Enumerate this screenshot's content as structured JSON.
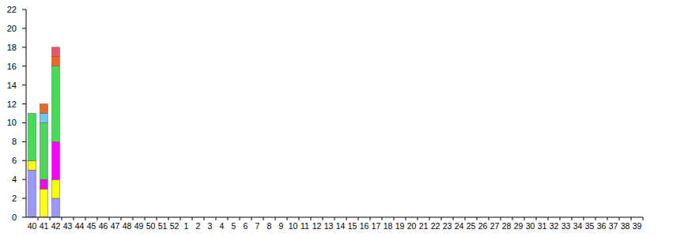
{
  "chart_data": {
    "type": "bar",
    "stacked": true,
    "grid": false,
    "categories": [
      "40",
      "41",
      "42",
      "43",
      "44",
      "45",
      "46",
      "47",
      "48",
      "49",
      "50",
      "51",
      "52",
      "1",
      "2",
      "3",
      "4",
      "5",
      "6",
      "7",
      "8",
      "9",
      "10",
      "11",
      "12",
      "13",
      "14",
      "15",
      "16",
      "17",
      "18",
      "19",
      "20",
      "21",
      "22",
      "23",
      "24",
      "25",
      "26",
      "27",
      "28",
      "29",
      "30",
      "31",
      "32",
      "33",
      "34",
      "35",
      "36",
      "37",
      "38",
      "39"
    ],
    "ylim": [
      0,
      22
    ],
    "yticks": [
      0,
      2,
      4,
      6,
      8,
      10,
      12,
      14,
      16,
      18,
      20,
      22
    ],
    "series": [
      {
        "color": "#9999ff",
        "values": [
          5,
          null,
          2,
          null,
          null,
          null,
          null,
          null,
          null,
          null,
          null,
          null,
          null,
          null,
          null,
          null,
          null,
          null,
          null,
          null,
          null,
          null,
          null,
          null,
          null,
          null,
          null,
          null,
          null,
          null,
          null,
          null,
          null,
          null,
          null,
          null,
          null,
          null,
          null,
          null,
          null,
          null,
          null,
          null,
          null,
          null,
          null,
          null,
          null,
          null,
          null,
          null
        ]
      },
      {
        "color": "#ffff00",
        "values": [
          1,
          3,
          2,
          null,
          null,
          null,
          null,
          null,
          null,
          null,
          null,
          null,
          null,
          null,
          null,
          null,
          null,
          null,
          null,
          null,
          null,
          null,
          null,
          null,
          null,
          null,
          null,
          null,
          null,
          null,
          null,
          null,
          null,
          null,
          null,
          null,
          null,
          null,
          null,
          null,
          null,
          null,
          null,
          null,
          null,
          null,
          null,
          null,
          null,
          null,
          null,
          null
        ]
      },
      {
        "color": "#ff00ff",
        "values": [
          null,
          1,
          4,
          null,
          null,
          null,
          null,
          null,
          null,
          null,
          null,
          null,
          null,
          null,
          null,
          null,
          null,
          null,
          null,
          null,
          null,
          null,
          null,
          null,
          null,
          null,
          null,
          null,
          null,
          null,
          null,
          null,
          null,
          null,
          null,
          null,
          null,
          null,
          null,
          null,
          null,
          null,
          null,
          null,
          null,
          null,
          null,
          null,
          null,
          null,
          null,
          null
        ]
      },
      {
        "color": "#44dd55",
        "values": [
          5,
          6,
          8,
          null,
          null,
          null,
          null,
          null,
          null,
          null,
          null,
          null,
          null,
          null,
          null,
          null,
          null,
          null,
          null,
          null,
          null,
          null,
          null,
          null,
          null,
          null,
          null,
          null,
          null,
          null,
          null,
          null,
          null,
          null,
          null,
          null,
          null,
          null,
          null,
          null,
          null,
          null,
          null,
          null,
          null,
          null,
          null,
          null,
          null,
          null,
          null,
          null
        ]
      },
      {
        "color": "#66ccff",
        "values": [
          null,
          1,
          null,
          null,
          null,
          null,
          null,
          null,
          null,
          null,
          null,
          null,
          null,
          null,
          null,
          null,
          null,
          null,
          null,
          null,
          null,
          null,
          null,
          null,
          null,
          null,
          null,
          null,
          null,
          null,
          null,
          null,
          null,
          null,
          null,
          null,
          null,
          null,
          null,
          null,
          null,
          null,
          null,
          null,
          null,
          null,
          null,
          null,
          null,
          null,
          null,
          null
        ]
      },
      {
        "color": "#ee6622",
        "values": [
          null,
          1,
          1,
          null,
          null,
          null,
          null,
          null,
          null,
          null,
          null,
          null,
          null,
          null,
          null,
          null,
          null,
          null,
          null,
          null,
          null,
          null,
          null,
          null,
          null,
          null,
          null,
          null,
          null,
          null,
          null,
          null,
          null,
          null,
          null,
          null,
          null,
          null,
          null,
          null,
          null,
          null,
          null,
          null,
          null,
          null,
          null,
          null,
          null,
          null,
          null,
          null
        ]
      },
      {
        "color": "#ee5566",
        "values": [
          null,
          null,
          1,
          null,
          null,
          null,
          null,
          null,
          null,
          null,
          null,
          null,
          null,
          null,
          null,
          null,
          null,
          null,
          null,
          null,
          null,
          null,
          null,
          null,
          null,
          null,
          null,
          null,
          null,
          null,
          null,
          null,
          null,
          null,
          null,
          null,
          null,
          null,
          null,
          null,
          null,
          null,
          null,
          null,
          null,
          null,
          null,
          null,
          null,
          null,
          null,
          null
        ]
      }
    ]
  }
}
